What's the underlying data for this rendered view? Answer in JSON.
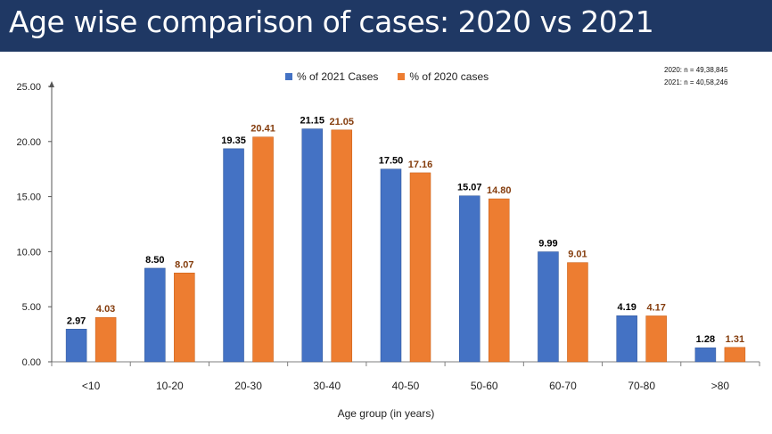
{
  "header": {
    "title": "Age wise comparison of cases: 2020 vs 2021"
  },
  "notes": {
    "line1": "2020: n = 49,38,845",
    "line2": "2021: n = 40,58,246"
  },
  "chart_data": {
    "type": "bar",
    "title": "Age wise comparison of cases: 2020 vs 2021",
    "xlabel": "Age group (in years)",
    "ylabel": "",
    "ylim": [
      0,
      25
    ],
    "yticks": [
      "0.00",
      "5.00",
      "10.00",
      "15.00",
      "20.00",
      "25.00"
    ],
    "categories": [
      "<10",
      "10-20",
      "20-30",
      "30-40",
      "40-50",
      "50-60",
      "60-70",
      "70-80",
      ">80"
    ],
    "series": [
      {
        "name": "% of 2021 Cases",
        "color": "#4472c4",
        "label_color": "#000000",
        "values": [
          2.97,
          8.5,
          19.35,
          21.15,
          17.5,
          15.07,
          9.99,
          4.19,
          1.28
        ],
        "labels": [
          "2.97",
          "8.50",
          "19.35",
          "21.15",
          "17.50",
          "15.07",
          "9.99",
          "4.19",
          "1.28"
        ]
      },
      {
        "name": "% of 2020 cases",
        "color": "#ed7d31",
        "label_color": "#843c0c",
        "values": [
          4.03,
          8.07,
          20.41,
          21.05,
          17.16,
          14.8,
          9.01,
          4.17,
          1.31
        ],
        "labels": [
          "4.03",
          "8.07",
          "20.41",
          "21.05",
          "17.16",
          "14.80",
          "9.01",
          "4.17",
          "1.31"
        ]
      }
    ],
    "legend_position": "top-center"
  }
}
